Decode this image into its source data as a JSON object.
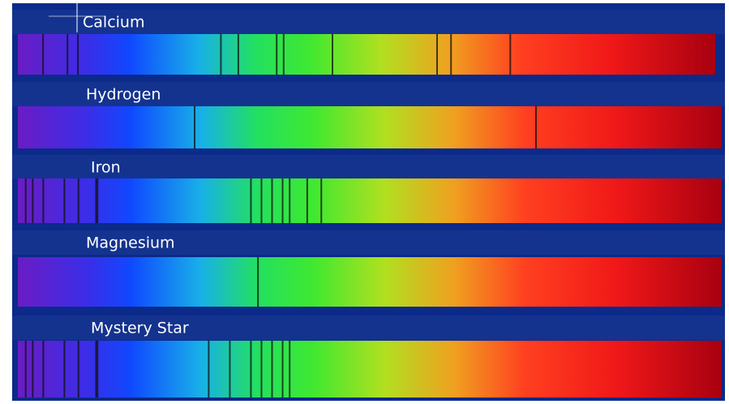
{
  "spectra": [
    {
      "label": "Calcium"
    },
    {
      "label": "Hydrogen"
    },
    {
      "label": "Iron"
    },
    {
      "label": "Magnesium"
    },
    {
      "label": "Mystery Star"
    }
  ]
}
